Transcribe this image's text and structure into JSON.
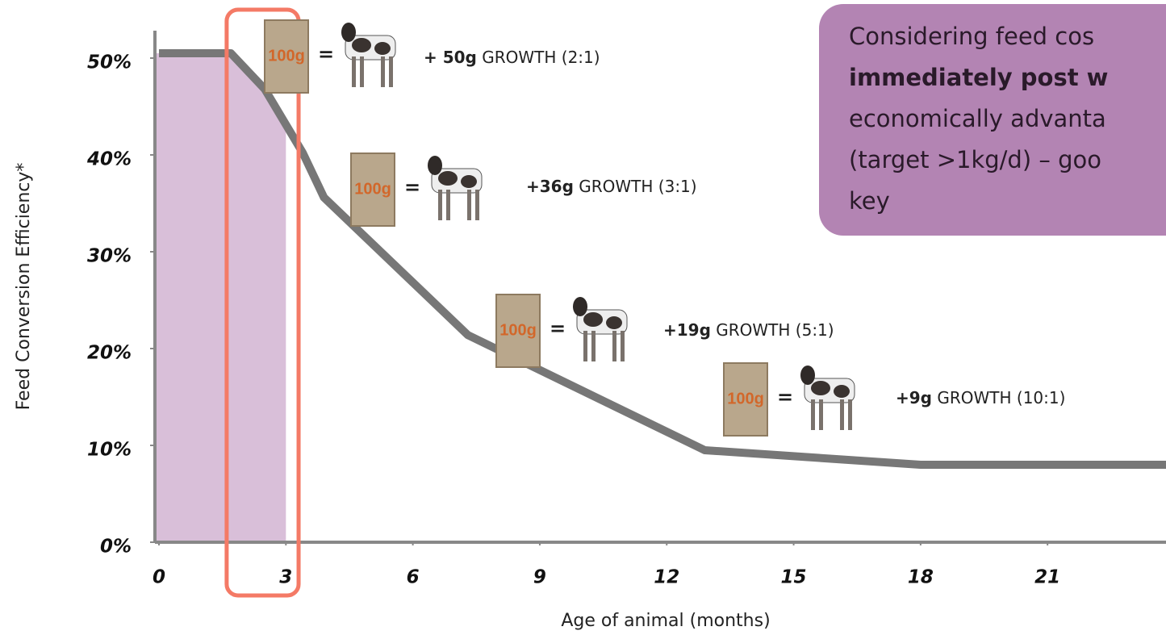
{
  "chart_data": {
    "type": "line",
    "y_label": "Feed Conversion Efficiency*",
    "x_label": "Age of animal (months)",
    "x": [
      0,
      1.7,
      2.5,
      3.4,
      3.9,
      7.3,
      12.9,
      18,
      23.8
    ],
    "series": [
      {
        "color": "#777777",
        "values": [
          50.5,
          50.5,
          46.8,
          40.2,
          35.6,
          21.4,
          9.5,
          8.0,
          8.0
        ]
      }
    ],
    "shaded_range": [
      0,
      3
    ],
    "shade_color": "#d9bfd9",
    "highlight_range": [
      1.6,
      3.3
    ],
    "highlight_color": "#f47a66",
    "xlim": [
      0,
      23.8
    ],
    "ylim": [
      0,
      50
    ],
    "xticks": [
      0,
      3,
      6,
      9,
      12,
      15,
      18,
      21
    ],
    "yticks": [
      {
        "value": 0,
        "label": "0%"
      },
      {
        "value": 10,
        "label": "10%"
      },
      {
        "value": 20,
        "label": "20%"
      },
      {
        "value": 30,
        "label": "30%"
      },
      {
        "value": 40,
        "label": "40%"
      },
      {
        "value": 50,
        "label": "50%"
      }
    ],
    "annotations": [
      {
        "bag": "100g",
        "equals": "=",
        "gain": "+ 50g",
        "text": "GROWTH (2:1)"
      },
      {
        "bag": "100g",
        "equals": "=",
        "gain": "+36g",
        "text": "GROWTH (3:1)"
      },
      {
        "bag": "100g",
        "equals": "=",
        "gain": "+19g",
        "text": "GROWTH (5:1)"
      },
      {
        "bag": "100g",
        "equals": "=",
        "gain": "+9g",
        "text": "GROWTH (10:1)"
      }
    ],
    "callout": {
      "color": "#b384b3",
      "lines": [
        {
          "text": "Considering feed cos",
          "bold": false
        },
        {
          "text": "immediately post w",
          "bold": true
        },
        {
          "text": "economically advanta",
          "bold": false
        },
        {
          "text": "(target >1kg/d) – goo",
          "bold": false
        },
        {
          "text": "key",
          "bold": false
        }
      ]
    }
  }
}
